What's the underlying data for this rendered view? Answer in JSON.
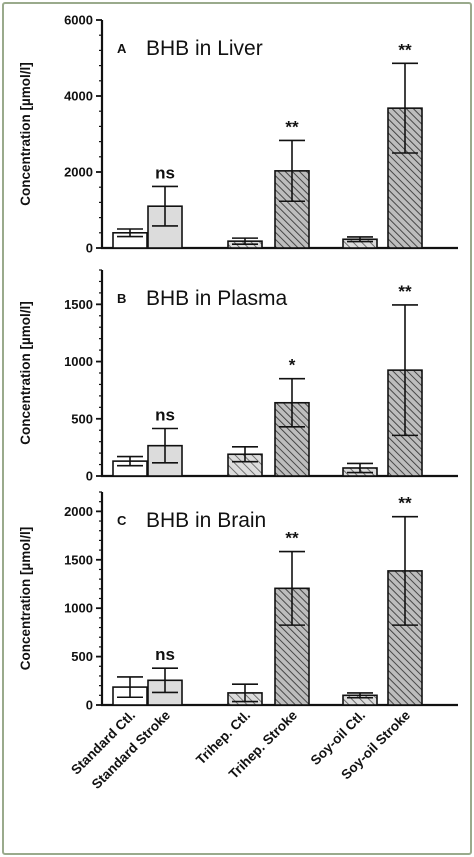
{
  "frame_color": "#9aaa8c",
  "categories": [
    "Standard Ctl.",
    "Standard Stroke",
    "Trihep. Ctl.",
    "Trihep. Stroke",
    "Soy-oil Ctl.",
    "Soy-oil Stroke"
  ],
  "chart_data": [
    {
      "type": "bar",
      "panel": "A",
      "title": "BHB in Liver",
      "ylabel": "Concentration [µmol/l]",
      "ylim": [
        0,
        6000
      ],
      "yticks": [
        0,
        2000,
        4000,
        6000
      ],
      "categories": [
        "Standard Ctl.",
        "Standard Stroke",
        "Trihep. Ctl.",
        "Trihep. Stroke",
        "Soy-oil Ctl.",
        "Soy-oil Stroke"
      ],
      "values": [
        400,
        1100,
        180,
        2030,
        230,
        3680
      ],
      "errors": [
        100,
        520,
        80,
        800,
        60,
        1180
      ],
      "significance": [
        "",
        "ns",
        "",
        "**",
        "",
        "**"
      ]
    },
    {
      "type": "bar",
      "panel": "B",
      "title": "BHB in Plasma",
      "ylabel": "Concentration [µmol/l]",
      "ylim": [
        0,
        1800
      ],
      "yticks": [
        0,
        500,
        1000,
        1500
      ],
      "categories": [
        "Standard Ctl.",
        "Standard Stroke",
        "Trihep. Ctl.",
        "Trihep. Stroke",
        "Soy-oil Ctl.",
        "Soy-oil Stroke"
      ],
      "values": [
        130,
        265,
        190,
        640,
        70,
        925
      ],
      "errors": [
        40,
        150,
        65,
        210,
        40,
        570
      ],
      "significance": [
        "",
        "ns",
        "",
        "*",
        "",
        "**"
      ]
    },
    {
      "type": "bar",
      "panel": "C",
      "title": "BHB in Brain",
      "ylabel": "Concentration [µmol/l]",
      "ylim": [
        0,
        2200
      ],
      "yticks": [
        0,
        500,
        1000,
        1500,
        2000
      ],
      "categories": [
        "Standard Ctl.",
        "Standard Stroke",
        "Trihep. Ctl.",
        "Trihep. Stroke",
        "Soy-oil Ctl.",
        "Soy-oil Stroke"
      ],
      "values": [
        185,
        255,
        125,
        1205,
        100,
        1385
      ],
      "errors": [
        105,
        125,
        90,
        380,
        25,
        560
      ],
      "significance": [
        "",
        "ns",
        "",
        "**",
        "",
        "**"
      ]
    }
  ]
}
